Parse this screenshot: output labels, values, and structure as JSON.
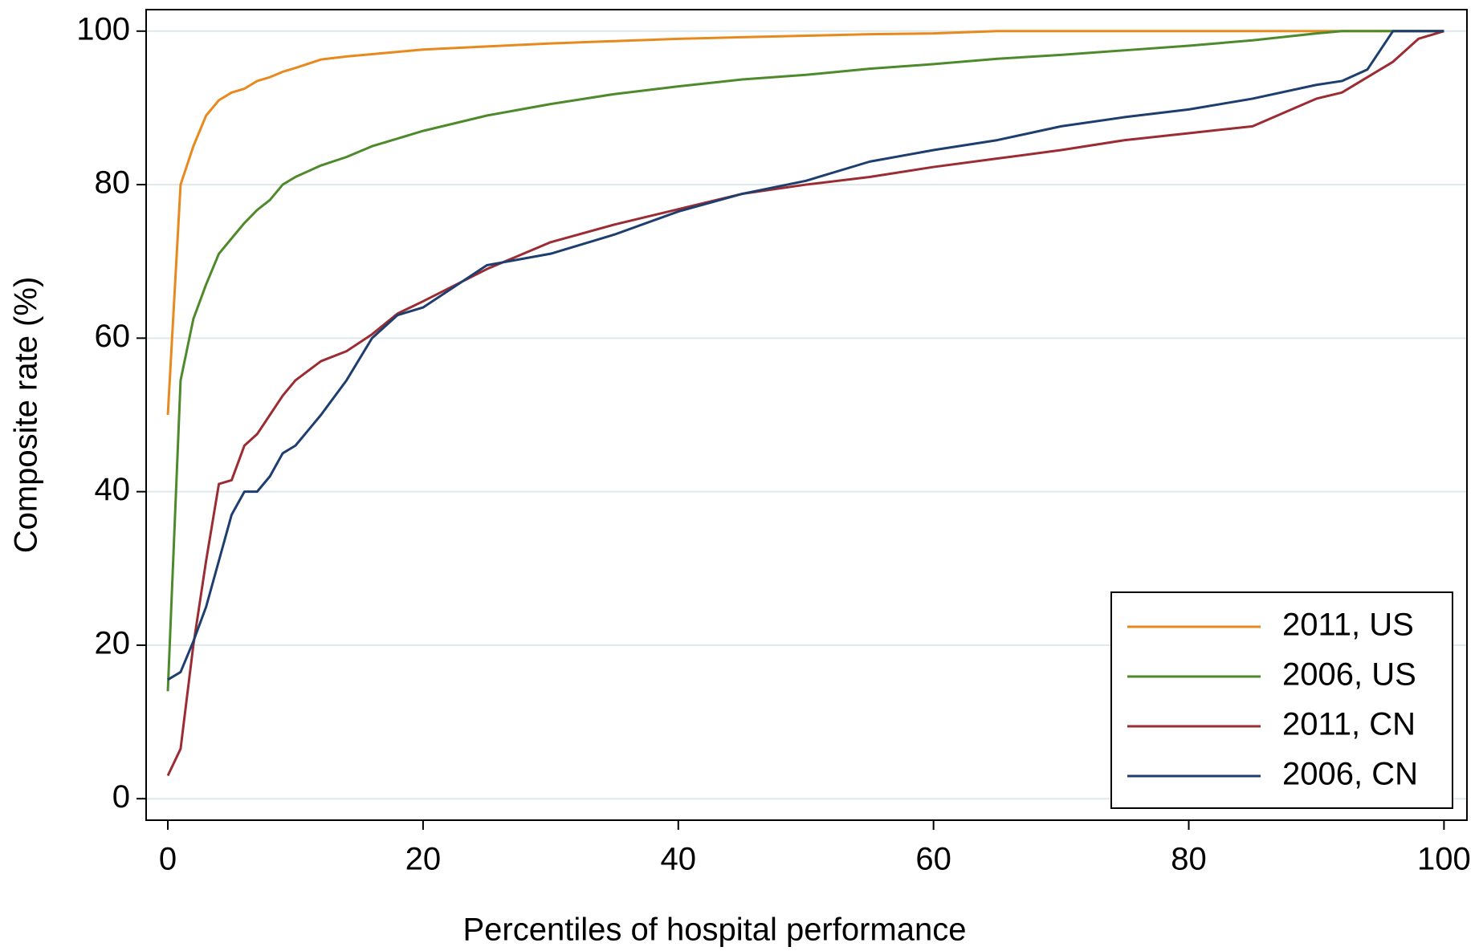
{
  "chart_data": {
    "type": "line",
    "x_label": "Percentiles of hospital performance",
    "y_label": "Composite rate (%)",
    "x": [
      0,
      1,
      2,
      3,
      4,
      5,
      6,
      7,
      8,
      9,
      10,
      12,
      14,
      16,
      18,
      20,
      25,
      30,
      35,
      40,
      45,
      50,
      55,
      60,
      65,
      70,
      75,
      80,
      85,
      90,
      92,
      94,
      96,
      98,
      100
    ],
    "series": [
      {
        "name": "2011, US",
        "color": "#e8891e",
        "values": [
          50,
          80,
          85,
          89,
          91,
          92,
          92.5,
          93.5,
          94,
          94.7,
          95.2,
          96.3,
          96.7,
          97,
          97.3,
          97.6,
          98,
          98.4,
          98.7,
          99,
          99.2,
          99.4,
          99.6,
          99.7,
          100,
          100,
          100,
          100,
          100,
          100,
          100,
          100,
          100,
          100,
          100
        ]
      },
      {
        "name": "2006, US",
        "color": "#4e8a2c",
        "values": [
          14,
          54.5,
          62.5,
          67,
          71,
          73,
          75,
          76.7,
          78,
          80,
          81,
          82.5,
          83.6,
          85,
          86,
          87,
          89,
          90.5,
          91.8,
          92.8,
          93.7,
          94.3,
          95.1,
          95.7,
          96.4,
          96.9,
          97.5,
          98.1,
          98.8,
          99.7,
          100,
          100,
          100,
          100,
          100
        ]
      },
      {
        "name": "2011, CN",
        "color": "#9b2c33",
        "values": [
          3,
          6.5,
          20,
          31,
          41,
          41.5,
          46,
          47.5,
          50,
          52.5,
          54.5,
          57,
          58.3,
          60.5,
          63.2,
          64.8,
          69,
          72.5,
          74.8,
          76.8,
          78.8,
          80,
          81,
          82.3,
          83.4,
          84.5,
          85.8,
          86.7,
          87.6,
          91.2,
          92,
          94,
          96,
          99,
          100
        ]
      },
      {
        "name": "2006, CN",
        "color": "#1d3e6e",
        "values": [
          15.5,
          16.5,
          20.5,
          25,
          31,
          37,
          40,
          40,
          42,
          45,
          46,
          50,
          54.5,
          60,
          63,
          64,
          69.5,
          71,
          73.5,
          76.5,
          78.8,
          80.5,
          83,
          84.5,
          85.8,
          87.6,
          88.8,
          89.8,
          91.2,
          93,
          93.5,
          95,
          100,
          100,
          100
        ]
      }
    ],
    "xlim": [
      -1.7,
      101.8
    ],
    "ylim": [
      -2.8,
      102.8
    ],
    "xticks": [
      0,
      20,
      40,
      60,
      80,
      100
    ],
    "yticks": [
      0,
      20,
      40,
      60,
      80,
      100
    ],
    "grid": true,
    "legend": "lower right"
  }
}
